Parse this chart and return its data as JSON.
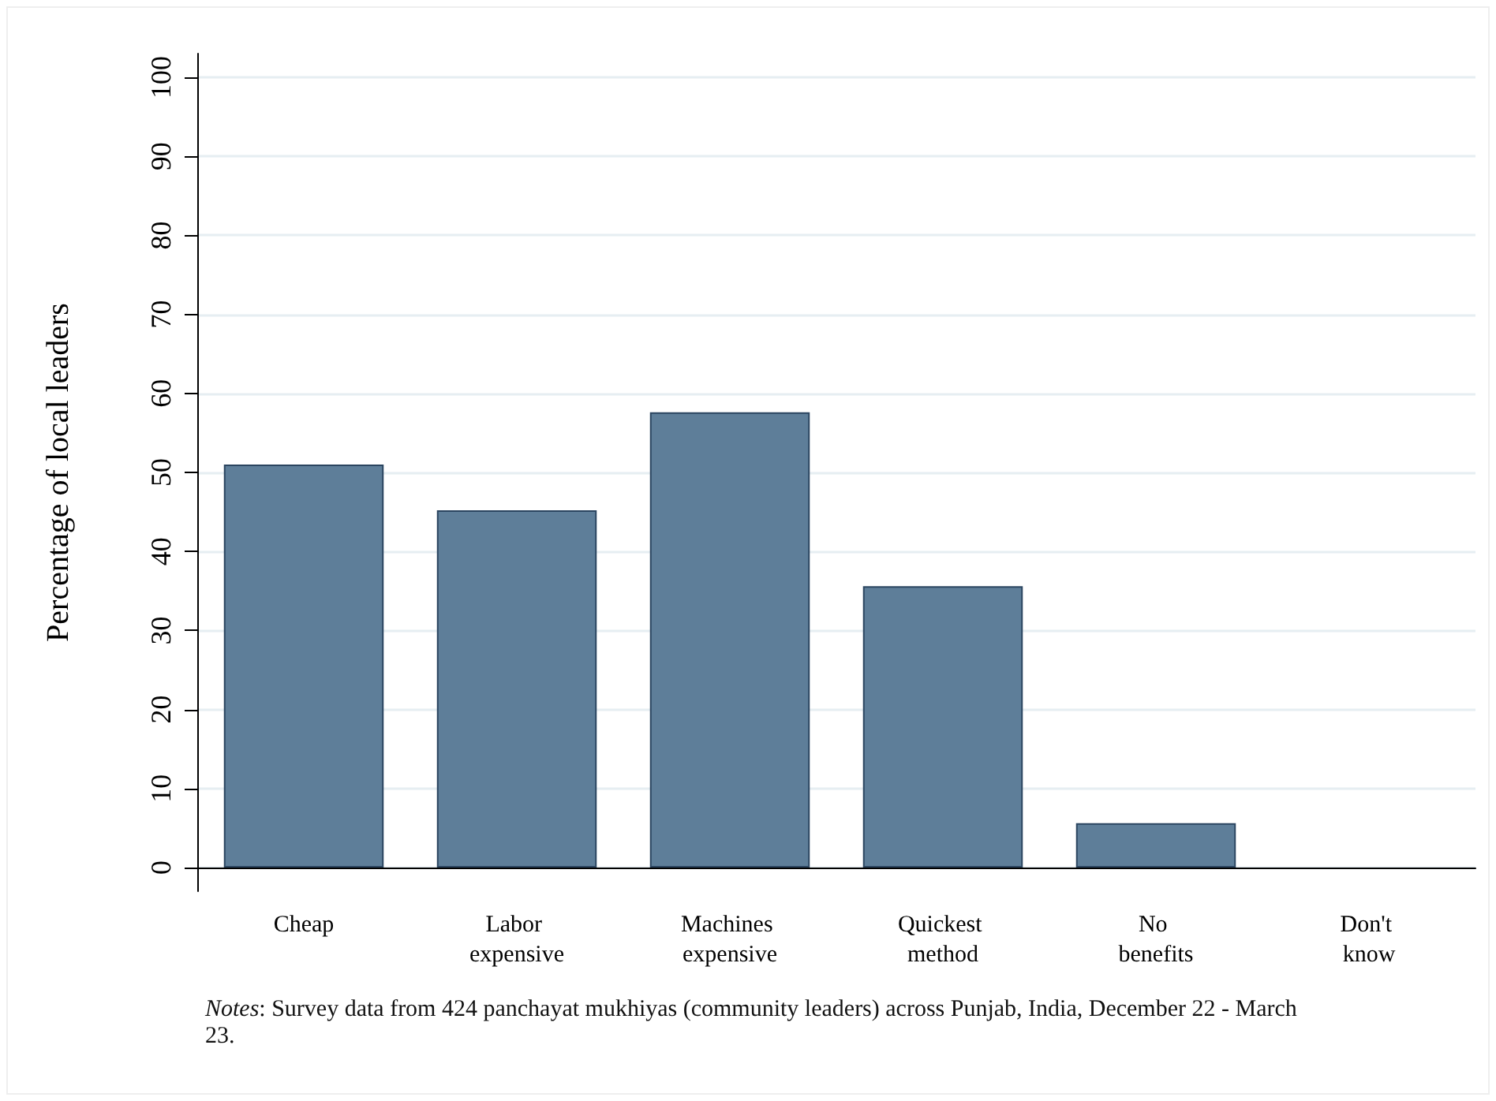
{
  "chart_data": {
    "type": "bar",
    "ylabel": "Percentage of local leaders",
    "categories": [
      "Cheap",
      "Labor expensive",
      "Machines expensive",
      "Quickest method",
      "No benefits",
      "Don't know"
    ],
    "values": [
      51,
      45.2,
      57.6,
      35.6,
      5.6,
      0
    ],
    "color": "#5e7e99",
    "ylim": [
      -3,
      103
    ],
    "yticks": [
      0,
      10,
      20,
      30,
      40,
      50,
      60,
      70,
      80,
      90,
      100
    ],
    "grid": "y",
    "annotations": [
      "Notes: Survey data from 424 panchayat mukhiyas (community leaders) across Punjab, India, December 22 - March 23."
    ]
  }
}
